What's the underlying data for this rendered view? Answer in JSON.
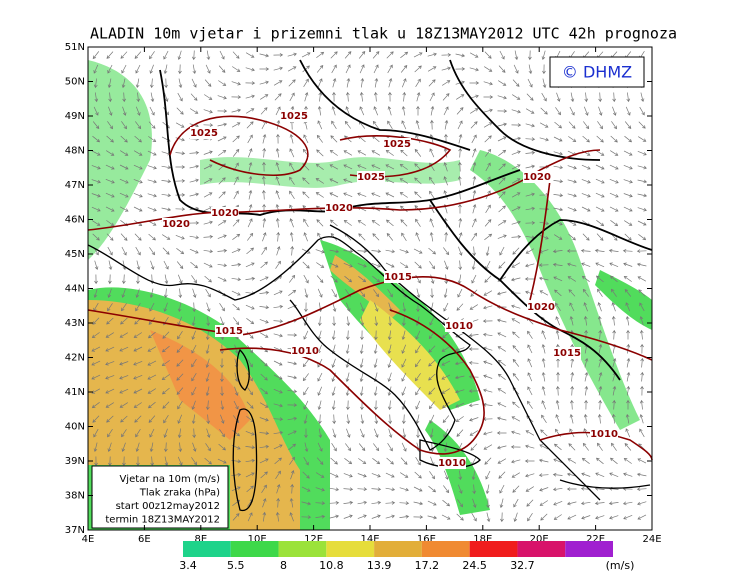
{
  "title": "ALADIN 10m vjetar i prizemni tlak u 18Z13MAY2012 UTC 42h prognoza",
  "copyright": "© DHMZ",
  "lat_labels": [
    "51N",
    "50N",
    "49N",
    "48N",
    "47N",
    "46N",
    "45N",
    "44N",
    "43N",
    "42N",
    "41N",
    "40N",
    "39N",
    "38N",
    "37N"
  ],
  "lon_labels": [
    "4E",
    "6E",
    "8E",
    "10E",
    "12E",
    "14E",
    "16E",
    "18E",
    "20E",
    "22E",
    "24E"
  ],
  "legend_box": [
    "Vjetar na 10m (m/s)",
    "Tlak zraka (hPa)",
    "start 00z12may2012",
    "termin 18Z13MAY2012"
  ],
  "isobar_labels": [
    "1025",
    "1025",
    "1025",
    "1025",
    "1020",
    "1020",
    "1020",
    "1020",
    "1015",
    "1015",
    "1015",
    "1010",
    "1010",
    "1010",
    "1010",
    "1020"
  ],
  "colorbar": {
    "levels": [
      3.4,
      5.5,
      8,
      10.8,
      13.9,
      17.2,
      24.5,
      32.7
    ],
    "colors": [
      "#1ed38a",
      "#3ed84a",
      "#9be23a",
      "#e6dd3b",
      "#e2ae39",
      "#f08a32",
      "#f01d1d",
      "#d8136a",
      "#a020d0"
    ],
    "unit": "(m/s)"
  }
}
